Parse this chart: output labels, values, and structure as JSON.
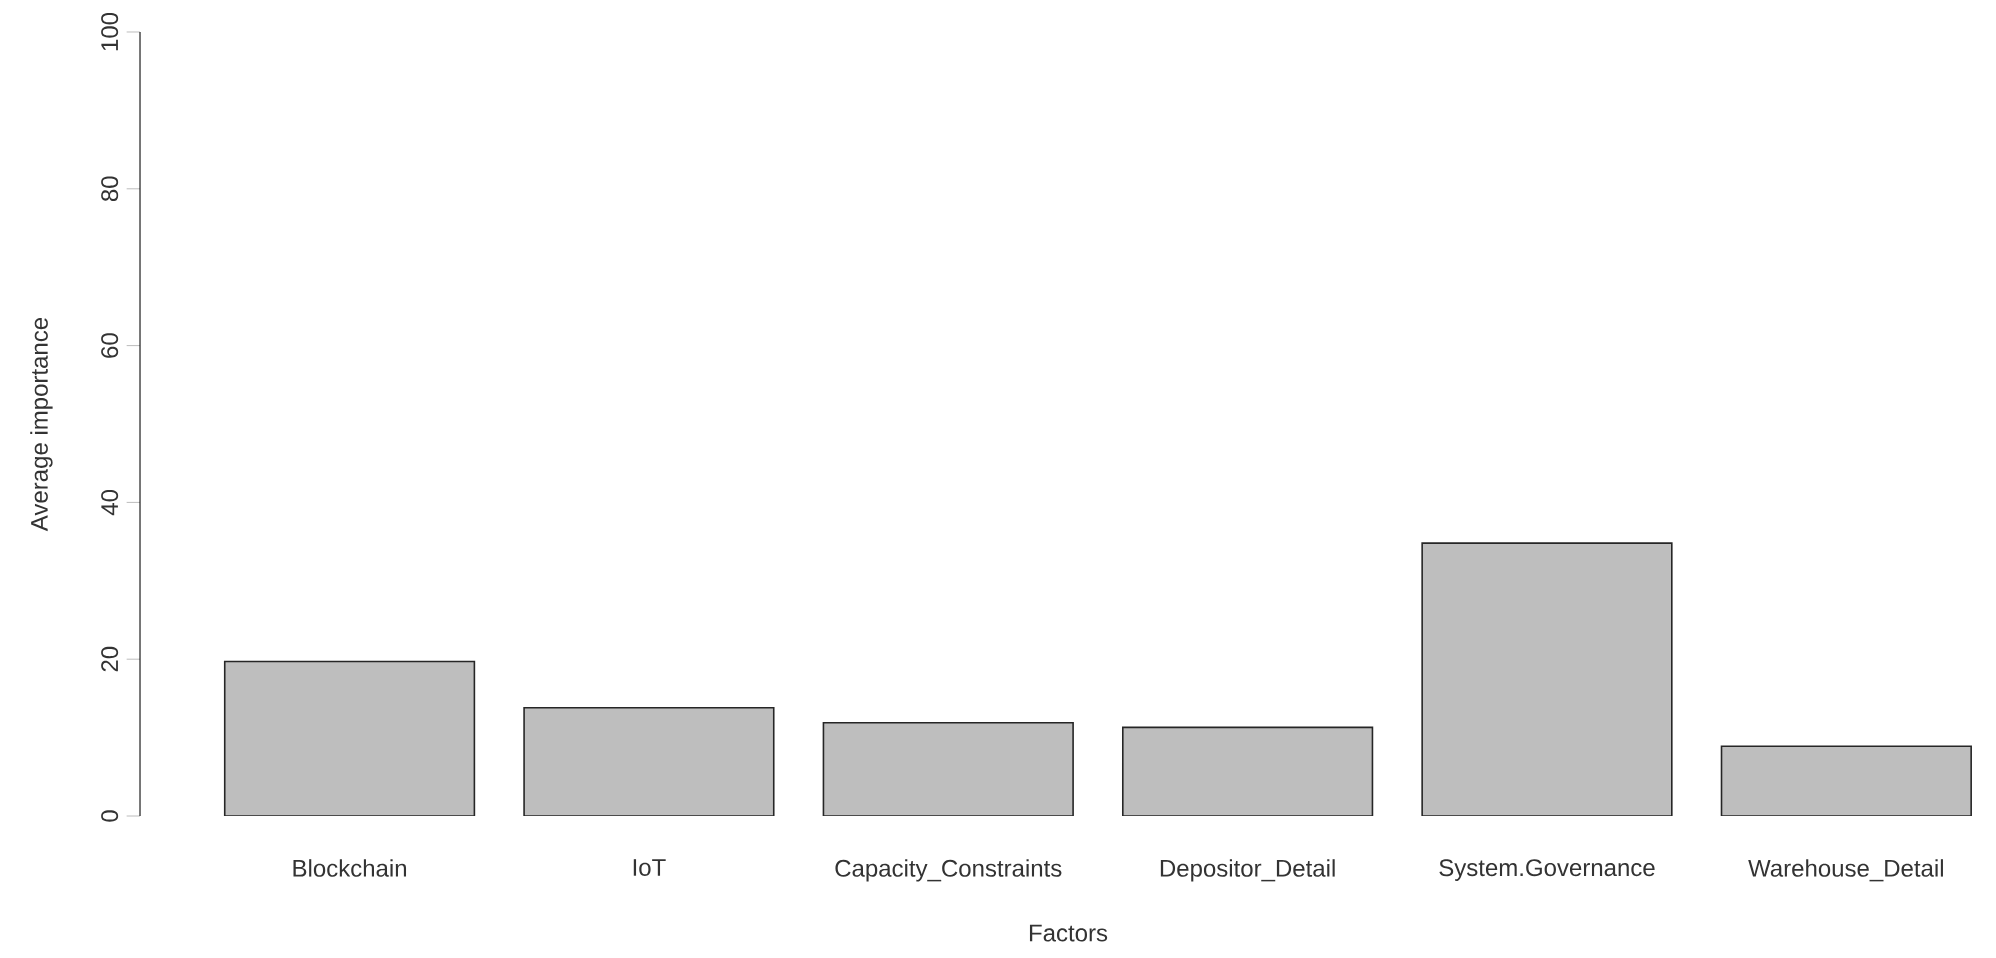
{
  "chart_data": {
    "type": "bar",
    "xlabel": "Factors",
    "ylabel": "Average importance",
    "categories": [
      "Blockchain",
      "IoT",
      "Capacity_Constraints",
      "Depositor_Detail",
      "System.Governance",
      "Warehouse_Detail"
    ],
    "values": [
      19.7,
      13.8,
      11.9,
      11.3,
      34.8,
      8.9
    ],
    "color": "#bebebe",
    "ylim": [
      0,
      100
    ],
    "yticks": [
      0,
      20,
      40,
      60,
      80,
      100
    ],
    "grid": false
  }
}
